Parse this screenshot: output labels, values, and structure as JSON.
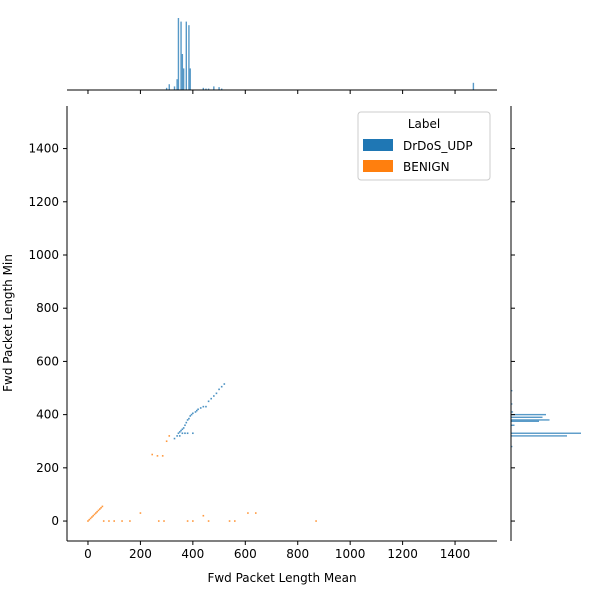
{
  "chart_data": {
    "type": "scatter",
    "subtype": "joint-plot (2D histogram with marginal histograms)",
    "xlabel": "Fwd Packet Length Mean",
    "ylabel": "Fwd Packet Length Min",
    "xlim": [
      -80,
      1560
    ],
    "ylim": [
      -75,
      1560
    ],
    "xticks": [
      0,
      200,
      400,
      600,
      800,
      1000,
      1200,
      1400
    ],
    "yticks": [
      0,
      200,
      400,
      600,
      800,
      1000,
      1200,
      1400
    ],
    "grid": false,
    "legend": {
      "title": "Label",
      "placement": "top-right",
      "entries": [
        {
          "name": "DrDoS_UDP",
          "color": "#1f77b4"
        },
        {
          "name": "BENIGN",
          "color": "#ff7f0e"
        }
      ]
    },
    "series": [
      {
        "name": "DrDoS_UDP",
        "color": "#1f77b4",
        "points": [
          [
            330,
            310
          ],
          [
            340,
            320
          ],
          [
            345,
            330
          ],
          [
            350,
            335
          ],
          [
            355,
            340
          ],
          [
            360,
            345
          ],
          [
            365,
            350
          ],
          [
            370,
            360
          ],
          [
            375,
            370
          ],
          [
            380,
            380
          ],
          [
            385,
            385
          ],
          [
            390,
            395
          ],
          [
            395,
            400
          ],
          [
            400,
            405
          ],
          [
            410,
            410
          ],
          [
            415,
            415
          ],
          [
            420,
            420
          ],
          [
            430,
            425
          ],
          [
            440,
            430
          ],
          [
            450,
            430
          ],
          [
            460,
            450
          ],
          [
            470,
            460
          ],
          [
            480,
            470
          ],
          [
            490,
            480
          ],
          [
            500,
            495
          ],
          [
            510,
            505
          ],
          [
            520,
            515
          ],
          [
            350,
            320
          ],
          [
            360,
            330
          ],
          [
            370,
            330
          ],
          [
            380,
            330
          ],
          [
            400,
            330
          ]
        ],
        "marginal_x": [
          [
            300,
            3
          ],
          [
            310,
            8
          ],
          [
            330,
            5
          ],
          [
            340,
            15
          ],
          [
            345,
            100
          ],
          [
            355,
            95
          ],
          [
            360,
            50
          ],
          [
            365,
            30
          ],
          [
            375,
            95
          ],
          [
            385,
            90
          ],
          [
            390,
            30
          ],
          [
            440,
            3
          ],
          [
            450,
            2
          ],
          [
            460,
            2
          ],
          [
            480,
            5
          ],
          [
            500,
            4
          ],
          [
            510,
            2
          ],
          [
            1470,
            10
          ]
        ],
        "marginal_y": [
          [
            280,
            2
          ],
          [
            330,
            100
          ],
          [
            320,
            80
          ],
          [
            360,
            5
          ],
          [
            375,
            40
          ],
          [
            380,
            55
          ],
          [
            390,
            45
          ],
          [
            400,
            50
          ],
          [
            410,
            3
          ],
          [
            440,
            2
          ],
          [
            490,
            2
          ]
        ]
      },
      {
        "name": "BENIGN",
        "color": "#ff7f0e",
        "points": [
          [
            0,
            0
          ],
          [
            5,
            5
          ],
          [
            10,
            10
          ],
          [
            15,
            15
          ],
          [
            20,
            20
          ],
          [
            25,
            25
          ],
          [
            30,
            30
          ],
          [
            35,
            35
          ],
          [
            40,
            40
          ],
          [
            45,
            45
          ],
          [
            50,
            50
          ],
          [
            55,
            55
          ],
          [
            60,
            0
          ],
          [
            80,
            0
          ],
          [
            100,
            0
          ],
          [
            130,
            0
          ],
          [
            160,
            0
          ],
          [
            200,
            30
          ],
          [
            270,
            0
          ],
          [
            290,
            0
          ],
          [
            380,
            0
          ],
          [
            400,
            0
          ],
          [
            440,
            20
          ],
          [
            460,
            0
          ],
          [
            540,
            0
          ],
          [
            560,
            0
          ],
          [
            610,
            30
          ],
          [
            640,
            30
          ],
          [
            870,
            0
          ],
          [
            245,
            250
          ],
          [
            265,
            245
          ],
          [
            285,
            245
          ],
          [
            300,
            300
          ],
          [
            310,
            320
          ]
        ]
      }
    ]
  }
}
